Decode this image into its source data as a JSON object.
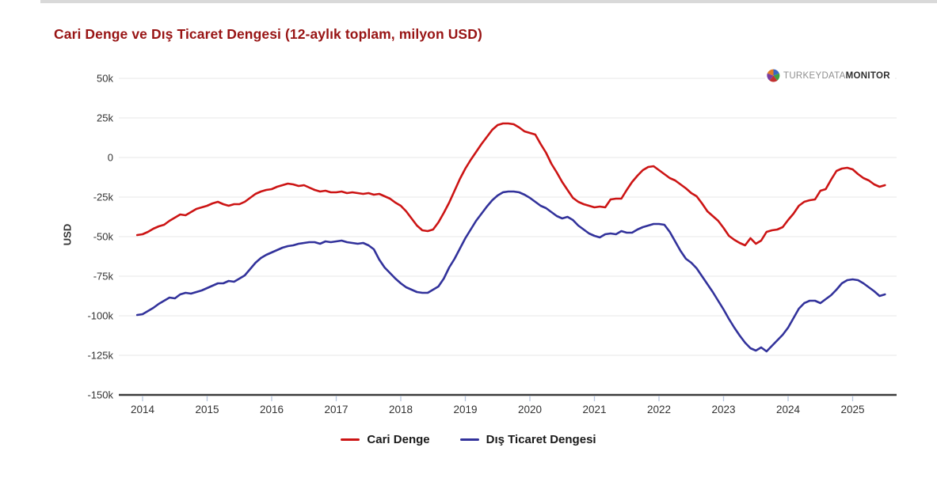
{
  "page": {
    "title": "Cari Denge ve Dış Ticaret Dengesi (12-aylık toplam, milyon USD)"
  },
  "branding": {
    "gray": "TURKEYDATA",
    "bold": "MONITOR"
  },
  "axes": {
    "y_label": "USD",
    "y_ticks": [
      {
        "label": "50k",
        "value": 50000
      },
      {
        "label": "25k",
        "value": 25000
      },
      {
        "label": "0",
        "value": 0
      },
      {
        "label": "-25k",
        "value": -25000
      },
      {
        "label": "-50k",
        "value": -50000
      },
      {
        "label": "-75k",
        "value": -75000
      },
      {
        "label": "-100k",
        "value": -100000
      },
      {
        "label": "-125k",
        "value": -125000
      },
      {
        "label": "-150k",
        "value": -150000
      }
    ],
    "x_ticks": [
      "2014",
      "2015",
      "2016",
      "2017",
      "2018",
      "2019",
      "2020",
      "2021",
      "2022",
      "2023",
      "2024",
      "2025"
    ]
  },
  "legend": [
    {
      "label": "Cari Denge",
      "color": "#cc1414"
    },
    {
      "label": "Dış Ticaret Dengesi",
      "color": "#32329b"
    }
  ],
  "colors": {
    "title": "#981414",
    "gridline": "#e7e7e7",
    "axis_line": "#3b3b3b",
    "tick_mark": "#b7c5dd",
    "tick_text": "#333333"
  },
  "chart_data": {
    "type": "line",
    "title": "Cari Denge ve Dış Ticaret Dengesi (12-aylık toplam, milyon USD)",
    "xlabel": "",
    "ylabel": "USD",
    "unit": "milyon USD, 12-aylık toplam",
    "ylim": [
      -150000,
      50000
    ],
    "y_tick_step": 25000,
    "x_years": [
      2014,
      2025
    ],
    "grid": true,
    "legend_position": "bottom",
    "start_month": "2013-12",
    "end_month": "2025-07",
    "frequency": "monthly",
    "series": [
      {
        "name": "Cari Denge",
        "color": "#cc1414",
        "monthly_values": [
          -49000,
          -48500,
          -47000,
          -45000,
          -43500,
          -42500,
          -40000,
          -38000,
          -36000,
          -36500,
          -34500,
          -32500,
          -31500,
          -30500,
          -29000,
          -28000,
          -29500,
          -30500,
          -29500,
          -29500,
          -28000,
          -25500,
          -23000,
          -21500,
          -20500,
          -20000,
          -18500,
          -17500,
          -16500,
          -17000,
          -18000,
          -17500,
          -19000,
          -20500,
          -21500,
          -21000,
          -22000,
          -22000,
          -21500,
          -22500,
          -22000,
          -22500,
          -23000,
          -22500,
          -23500,
          -23000,
          -24500,
          -26000,
          -28500,
          -30500,
          -34000,
          -38500,
          -43000,
          -46000,
          -46500,
          -45500,
          -41000,
          -35000,
          -28500,
          -21000,
          -13500,
          -7000,
          -1500,
          3500,
          8500,
          13000,
          17500,
          20500,
          21500,
          21500,
          21000,
          19000,
          16500,
          15500,
          14500,
          8500,
          3000,
          -4000,
          -9500,
          -15500,
          -20500,
          -25500,
          -28000,
          -29500,
          -30500,
          -31500,
          -31000,
          -31500,
          -26500,
          -26000,
          -26000,
          -20500,
          -15500,
          -11500,
          -8000,
          -6000,
          -5500,
          -8000,
          -10500,
          -13000,
          -14500,
          -17000,
          -19500,
          -22500,
          -24500,
          -29000,
          -34000,
          -37000,
          -40000,
          -44500,
          -49500,
          -52000,
          -54000,
          -55500,
          -51000,
          -54500,
          -52500,
          -47000,
          -46000,
          -45500,
          -44000,
          -39500,
          -35500,
          -30500,
          -28000,
          -27000,
          -26500,
          -21000,
          -20000,
          -14000,
          -8500,
          -7000,
          -6500,
          -7500,
          -10500,
          -13000,
          -14500,
          -17000,
          -18500,
          -17500
        ]
      },
      {
        "name": "Dış Ticaret Dengesi",
        "color": "#32329b",
        "monthly_values": [
          -99500,
          -99000,
          -97000,
          -95000,
          -92500,
          -90500,
          -88500,
          -89000,
          -86500,
          -85500,
          -86000,
          -85000,
          -84000,
          -82500,
          -81000,
          -79500,
          -79500,
          -78000,
          -78500,
          -76500,
          -74500,
          -70500,
          -66500,
          -63500,
          -61500,
          -60000,
          -58500,
          -57000,
          -56000,
          -55500,
          -54500,
          -54000,
          -53500,
          -53500,
          -54500,
          -53000,
          -53500,
          -53000,
          -52500,
          -53500,
          -54000,
          -54500,
          -54000,
          -55500,
          -58000,
          -64500,
          -69500,
          -73000,
          -76500,
          -79500,
          -82000,
          -83500,
          -85000,
          -85500,
          -85500,
          -83500,
          -81500,
          -76500,
          -69500,
          -64000,
          -57500,
          -51000,
          -45500,
          -40000,
          -35500,
          -31000,
          -27000,
          -24000,
          -22000,
          -21500,
          -21500,
          -22000,
          -23500,
          -25500,
          -28000,
          -30500,
          -32000,
          -34500,
          -37000,
          -38500,
          -37500,
          -39500,
          -43000,
          -45500,
          -48000,
          -49500,
          -50500,
          -48500,
          -48000,
          -48500,
          -46500,
          -47500,
          -47500,
          -45500,
          -44000,
          -43000,
          -42000,
          -42000,
          -42500,
          -47000,
          -53000,
          -59000,
          -64000,
          -66500,
          -70000,
          -75000,
          -80000,
          -85000,
          -90500,
          -96000,
          -102000,
          -107500,
          -112500,
          -117000,
          -120500,
          -122000,
          -120000,
          -122500,
          -119000,
          -115500,
          -112000,
          -107500,
          -101500,
          -95500,
          -92000,
          -90500,
          -90500,
          -92000,
          -89500,
          -87000,
          -83500,
          -79500,
          -77500,
          -77000,
          -77500,
          -79500,
          -82000,
          -84500,
          -87500,
          -86500
        ]
      }
    ]
  }
}
